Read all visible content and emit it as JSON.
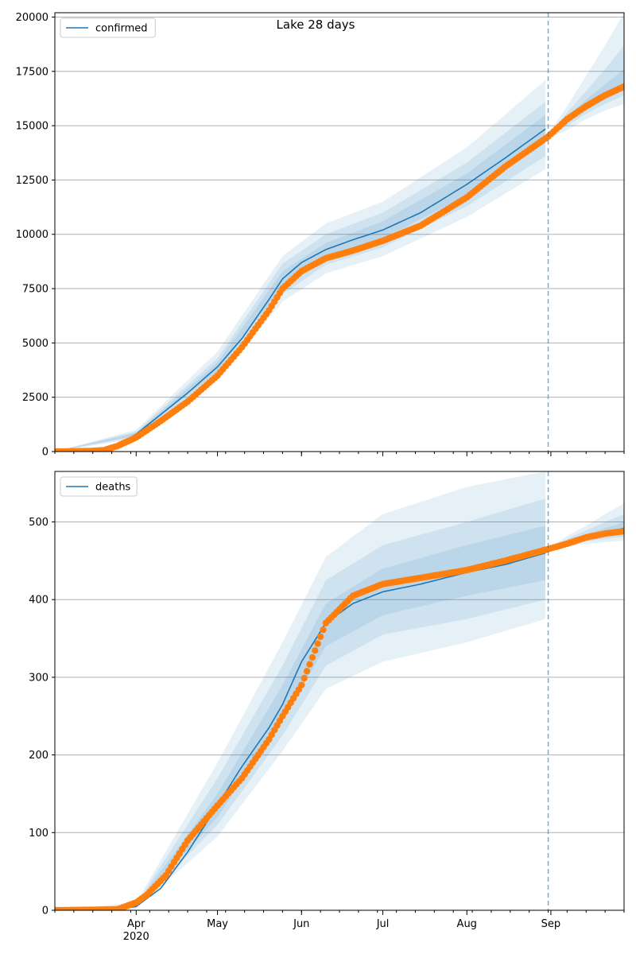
{
  "figure": {
    "suptitle": "Lake 28 days"
  },
  "chart_data": [
    {
      "type": "line",
      "title": "Lake 28 days",
      "xlabel": "",
      "ylabel": "",
      "xlim": [
        "2020-03-02",
        "2020-09-28"
      ],
      "ylim": [
        0,
        20200
      ],
      "yticks": [
        0,
        2500,
        5000,
        7500,
        10000,
        12500,
        15000,
        17500,
        20000
      ],
      "xticks": [
        {
          "date": "2020-04-01",
          "label": "Apr",
          "sublabel": "2020"
        },
        {
          "date": "2020-05-01",
          "label": "May"
        },
        {
          "date": "2020-06-01",
          "label": "Jun"
        },
        {
          "date": "2020-07-01",
          "label": "Jul"
        },
        {
          "date": "2020-08-01",
          "label": "Aug"
        },
        {
          "date": "2020-09-01",
          "label": "Sep"
        }
      ],
      "grid": "horizontal",
      "legend": {
        "position": "upper-left",
        "entries": [
          "confirmed"
        ]
      },
      "forecast_start": "2020-08-31",
      "colors": {
        "model": "#1f77b4",
        "observed": "#ff7f0e",
        "band": "#1f77b4"
      },
      "series": [
        {
          "name": "confirmed",
          "role": "model",
          "x": [
            "2020-03-02",
            "2020-03-15",
            "2020-03-25",
            "2020-04-01",
            "2020-04-10",
            "2020-04-20",
            "2020-05-01",
            "2020-05-10",
            "2020-05-20",
            "2020-05-25",
            "2020-06-01",
            "2020-06-10",
            "2020-06-20",
            "2020-07-01",
            "2020-07-15",
            "2020-08-01",
            "2020-08-15",
            "2020-08-30"
          ],
          "values": [
            0,
            30,
            280,
            800,
            1700,
            2700,
            3900,
            5200,
            7000,
            7950,
            8700,
            9300,
            9750,
            10200,
            11000,
            12300,
            13500,
            14850
          ]
        },
        {
          "name": "confirmed-forecast",
          "role": "forecast",
          "x": [
            "2020-08-31",
            "2020-09-07",
            "2020-09-14",
            "2020-09-21",
            "2020-09-28"
          ],
          "values": [
            14500,
            15200,
            15800,
            16350,
            16900
          ]
        },
        {
          "name": "observed",
          "role": "observed",
          "x": [
            "2020-03-02",
            "2020-03-15",
            "2020-03-20",
            "2020-03-25",
            "2020-04-01",
            "2020-04-10",
            "2020-04-20",
            "2020-05-01",
            "2020-05-10",
            "2020-05-20",
            "2020-05-25",
            "2020-06-01",
            "2020-06-10",
            "2020-06-20",
            "2020-07-01",
            "2020-07-15",
            "2020-08-01",
            "2020-08-15",
            "2020-08-31",
            "2020-09-07",
            "2020-09-14",
            "2020-09-21",
            "2020-09-28"
          ],
          "values": [
            0,
            20,
            60,
            250,
            650,
            1400,
            2300,
            3500,
            4800,
            6500,
            7500,
            8300,
            8900,
            9250,
            9700,
            10400,
            11700,
            13100,
            14500,
            15300,
            15900,
            16400,
            16800
          ]
        }
      ],
      "bands": [
        {
          "level": "outer",
          "x": [
            "2020-03-02",
            "2020-04-01",
            "2020-05-01",
            "2020-05-25",
            "2020-06-10",
            "2020-07-01",
            "2020-08-01",
            "2020-08-30"
          ],
          "lower": [
            0,
            600,
            3300,
            6900,
            8200,
            9000,
            10800,
            13000
          ],
          "upper": [
            0,
            1000,
            4600,
            9000,
            10500,
            11500,
            14000,
            17100
          ]
        },
        {
          "level": "middle",
          "x": [
            "2020-03-02",
            "2020-04-01",
            "2020-05-01",
            "2020-05-25",
            "2020-06-10",
            "2020-07-01",
            "2020-08-01",
            "2020-08-30"
          ],
          "lower": [
            0,
            680,
            3500,
            7250,
            8600,
            9400,
            11300,
            13600
          ],
          "upper": [
            0,
            920,
            4300,
            8650,
            10000,
            11000,
            13300,
            16100
          ]
        },
        {
          "level": "inner",
          "x": [
            "2020-03-02",
            "2020-04-01",
            "2020-05-01",
            "2020-05-25",
            "2020-06-10",
            "2020-07-01",
            "2020-08-01",
            "2020-08-30"
          ],
          "lower": [
            0,
            740,
            3700,
            7600,
            9000,
            9800,
            11800,
            14200
          ],
          "upper": [
            0,
            860,
            4100,
            8300,
            9600,
            10600,
            12800,
            15500
          ]
        },
        {
          "level": "outer",
          "x": [
            "2020-08-31",
            "2020-09-07",
            "2020-09-14",
            "2020-09-21",
            "2020-09-28"
          ],
          "lower": [
            14400,
            14800,
            15300,
            15700,
            16000
          ],
          "upper": [
            14600,
            15900,
            17300,
            18700,
            20200
          ]
        },
        {
          "level": "middle",
          "x": [
            "2020-08-31",
            "2020-09-07",
            "2020-09-14",
            "2020-09-21",
            "2020-09-28"
          ],
          "lower": [
            14450,
            15000,
            15550,
            16000,
            16400
          ],
          "upper": [
            14550,
            15600,
            16600,
            17600,
            18700
          ]
        },
        {
          "level": "inner",
          "x": [
            "2020-08-31",
            "2020-09-07",
            "2020-09-14",
            "2020-09-21",
            "2020-09-28"
          ],
          "lower": [
            14480,
            15100,
            15700,
            16200,
            16650
          ],
          "upper": [
            14520,
            15400,
            16200,
            16900,
            17600
          ]
        }
      ]
    },
    {
      "type": "line",
      "title": "",
      "xlabel": "",
      "ylabel": "",
      "xlim": [
        "2020-03-02",
        "2020-09-28"
      ],
      "ylim": [
        0,
        565
      ],
      "yticks": [
        0,
        100,
        200,
        300,
        400,
        500
      ],
      "xticks": [
        {
          "date": "2020-04-01",
          "label": "Apr",
          "sublabel": "2020"
        },
        {
          "date": "2020-05-01",
          "label": "May"
        },
        {
          "date": "2020-06-01",
          "label": "Jun"
        },
        {
          "date": "2020-07-01",
          "label": "Jul"
        },
        {
          "date": "2020-08-01",
          "label": "Aug"
        },
        {
          "date": "2020-09-01",
          "label": "Sep"
        }
      ],
      "grid": "horizontal",
      "legend": {
        "position": "upper-left",
        "entries": [
          "deaths"
        ]
      },
      "forecast_start": "2020-08-31",
      "colors": {
        "model": "#1f77b4",
        "observed": "#ff7f0e",
        "band": "#1f77b4"
      },
      "series": [
        {
          "name": "deaths",
          "role": "model",
          "x": [
            "2020-03-02",
            "2020-03-25",
            "2020-04-01",
            "2020-04-10",
            "2020-04-20",
            "2020-05-01",
            "2020-05-10",
            "2020-05-20",
            "2020-05-25",
            "2020-06-01",
            "2020-06-10",
            "2020-06-20",
            "2020-07-01",
            "2020-07-15",
            "2020-08-01",
            "2020-08-15",
            "2020-08-30"
          ],
          "values": [
            0,
            1,
            5,
            28,
            75,
            135,
            185,
            235,
            265,
            320,
            370,
            395,
            410,
            420,
            435,
            445,
            460
          ]
        },
        {
          "name": "deaths-forecast",
          "role": "forecast",
          "x": [
            "2020-08-31",
            "2020-09-07",
            "2020-09-14",
            "2020-09-21",
            "2020-09-28"
          ],
          "values": [
            465,
            473,
            480,
            486,
            492
          ]
        },
        {
          "name": "observed",
          "role": "observed",
          "x": [
            "2020-03-02",
            "2020-03-25",
            "2020-04-01",
            "2020-04-05",
            "2020-04-12",
            "2020-04-20",
            "2020-05-01",
            "2020-05-10",
            "2020-05-20",
            "2020-05-25",
            "2020-06-01",
            "2020-06-10",
            "2020-06-20",
            "2020-07-01",
            "2020-07-15",
            "2020-08-01",
            "2020-08-15",
            "2020-08-31",
            "2020-09-07",
            "2020-09-14",
            "2020-09-21",
            "2020-09-28"
          ],
          "values": [
            0,
            1,
            10,
            20,
            45,
            90,
            135,
            170,
            220,
            250,
            290,
            370,
            405,
            420,
            428,
            438,
            450,
            465,
            472,
            480,
            485,
            488
          ]
        }
      ],
      "bands": [
        {
          "level": "outer",
          "x": [
            "2020-03-02",
            "2020-04-01",
            "2020-05-01",
            "2020-05-25",
            "2020-06-10",
            "2020-07-01",
            "2020-08-01",
            "2020-08-30"
          ],
          "lower": [
            0,
            2,
            95,
            205,
            285,
            320,
            345,
            375
          ],
          "upper": [
            0,
            10,
            190,
            345,
            455,
            510,
            545,
            565
          ]
        },
        {
          "level": "middle",
          "x": [
            "2020-03-02",
            "2020-04-01",
            "2020-05-01",
            "2020-05-25",
            "2020-06-10",
            "2020-07-01",
            "2020-08-01",
            "2020-08-30"
          ],
          "lower": [
            0,
            3,
            110,
            225,
            315,
            355,
            375,
            400
          ],
          "upper": [
            0,
            8,
            170,
            315,
            425,
            470,
            500,
            530
          ]
        },
        {
          "level": "inner",
          "x": [
            "2020-03-02",
            "2020-04-01",
            "2020-05-01",
            "2020-05-25",
            "2020-06-10",
            "2020-07-01",
            "2020-08-01",
            "2020-08-30"
          ],
          "lower": [
            0,
            4,
            120,
            245,
            340,
            380,
            405,
            425
          ],
          "upper": [
            0,
            7,
            150,
            290,
            395,
            440,
            470,
            495
          ]
        },
        {
          "level": "outer",
          "x": [
            "2020-08-31",
            "2020-09-07",
            "2020-09-14",
            "2020-09-21",
            "2020-09-28"
          ],
          "lower": [
            464,
            468,
            472,
            474,
            476
          ],
          "upper": [
            466,
            482,
            495,
            510,
            524
          ]
        },
        {
          "level": "middle",
          "x": [
            "2020-08-31",
            "2020-09-07",
            "2020-09-14",
            "2020-09-21",
            "2020-09-28"
          ],
          "lower": [
            464.5,
            470,
            475,
            478,
            481
          ],
          "upper": [
            465.5,
            478,
            489,
            500,
            510
          ]
        },
        {
          "level": "inner",
          "x": [
            "2020-08-31",
            "2020-09-07",
            "2020-09-14",
            "2020-09-21",
            "2020-09-28"
          ],
          "lower": [
            465,
            471,
            477,
            481,
            485
          ],
          "upper": [
            465,
            476,
            484,
            492,
            500
          ]
        }
      ]
    }
  ]
}
